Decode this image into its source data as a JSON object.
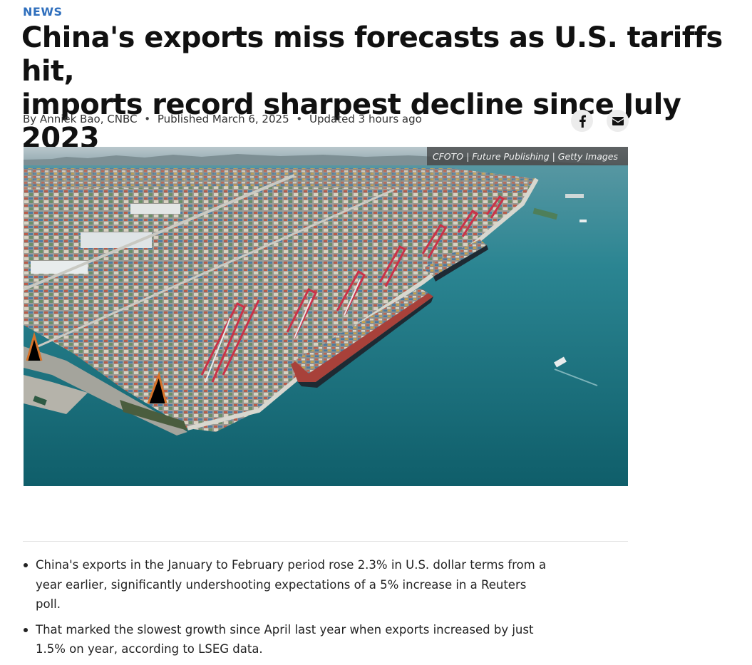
{
  "article": {
    "category": "NEWS",
    "headline_line1": "China's exports miss forecasts as U.S. tariffs hit,",
    "headline_line2": "imports record sharpest decline since July 2023",
    "byline": {
      "author": "By Anniek Bao, CNBC",
      "published": "Published March 6, 2025",
      "updated": "Updated 3 hours ago",
      "separator": "•"
    }
  },
  "share": {
    "facebook_icon": "facebook-icon",
    "email_icon": "envelope-icon"
  },
  "hero_image": {
    "credit": "CFOTO | Future Publishing | Getty Images",
    "subject": "aerial-container-port"
  },
  "key_points": [
    "China's exports in the January to February period rose 2.3% in U.S. dollar terms from a year earlier, significantly undershooting expectations of a 5% increase in a Reuters poll.",
    "That marked the slowest growth since April last year when exports increased by just 1.5% on year, according to LSEG data."
  ],
  "colors": {
    "category": "#2f6fbd",
    "water": "#1f7f8a"
  }
}
